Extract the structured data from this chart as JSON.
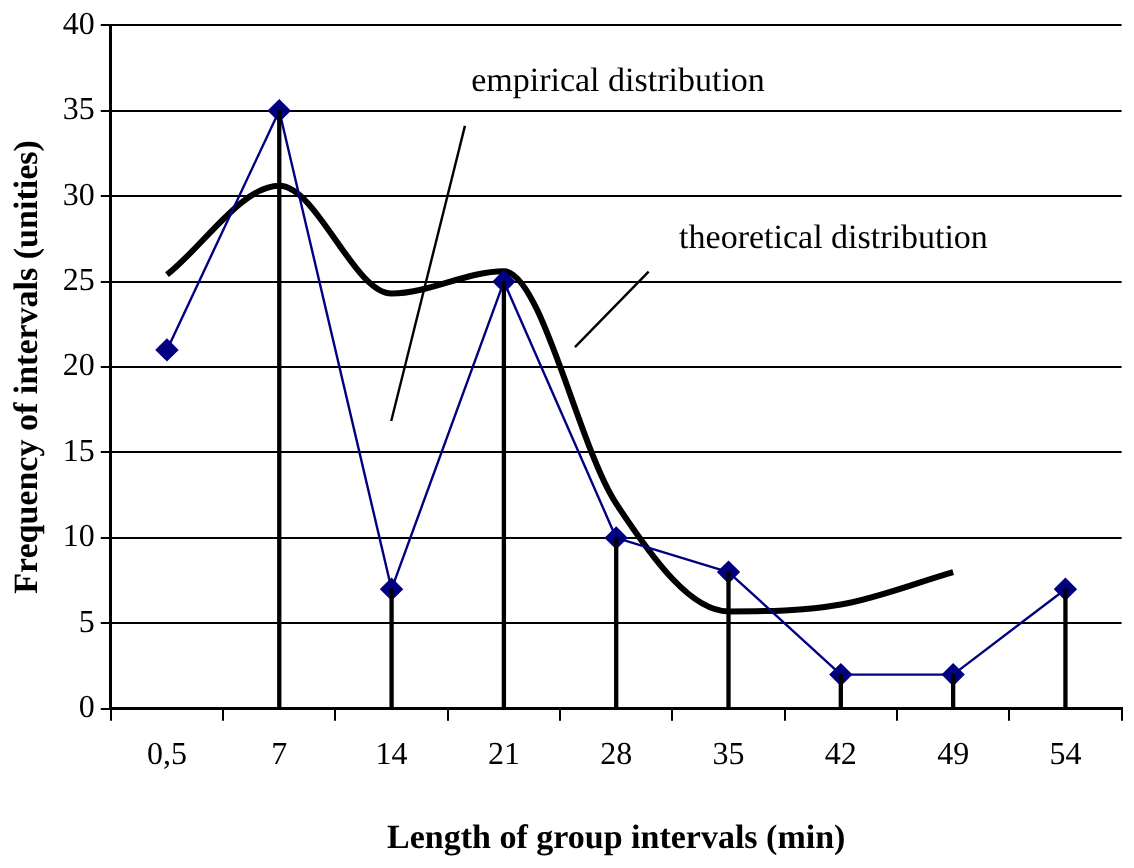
{
  "chart_data": {
    "type": "line",
    "xlabel": "Length of group intervals (min)",
    "ylabel": "Frequency of intervals (unities)",
    "categories": [
      "0,5",
      "7",
      "14",
      "21",
      "28",
      "35",
      "42",
      "49",
      "54"
    ],
    "ylim": [
      0,
      40
    ],
    "yticks": [
      0,
      5,
      10,
      15,
      20,
      25,
      30,
      35,
      40
    ],
    "grid": "y",
    "series": [
      {
        "values": [
          21,
          35,
          7,
          25,
          10,
          8,
          2,
          2,
          7
        ],
        "color": "#000080",
        "marker": "diamond",
        "line_style": "solid"
      },
      {
        "values": [
          25.4,
          30.6,
          24.3,
          25.6,
          12,
          5.7,
          6.1,
          8,
          null
        ],
        "color": "#000000",
        "marker": "none",
        "line_style": "solid"
      },
      {
        "type": "bar",
        "values": [
          null,
          35,
          7,
          25,
          10,
          8,
          2,
          2,
          7
        ],
        "color": "#000000"
      }
    ],
    "annotations": [
      "empirical distribution",
      "theoretical distribution"
    ]
  }
}
